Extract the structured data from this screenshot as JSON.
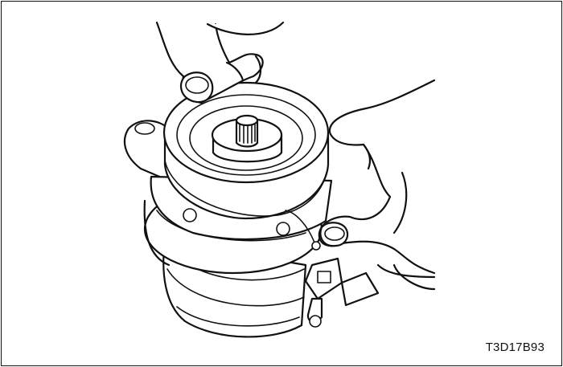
{
  "figure": {
    "code": "T3D17B93"
  },
  "colors": {
    "ink": "#111111",
    "background": "#ffffff"
  }
}
